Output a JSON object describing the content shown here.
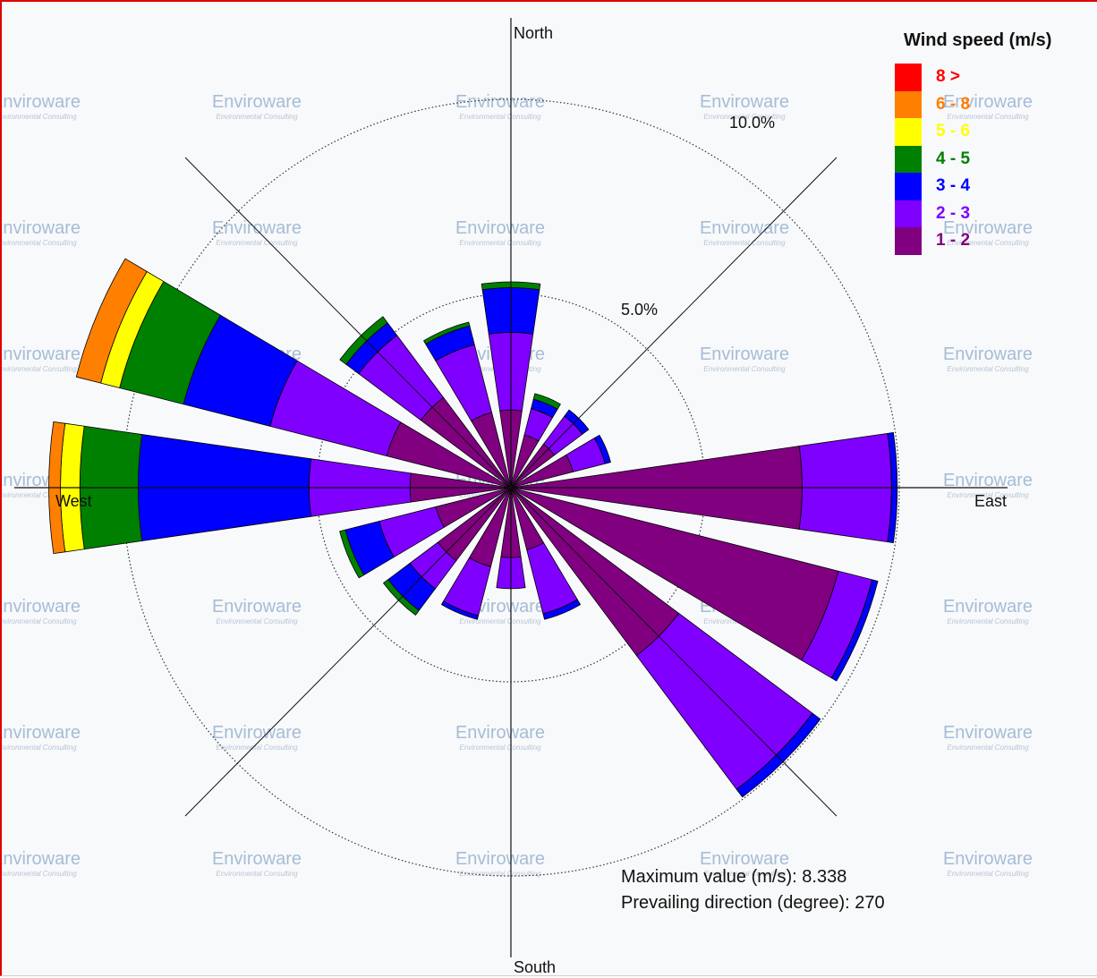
{
  "chart_data": {
    "type": "wind-rose",
    "directions_deg": [
      0,
      22.5,
      45,
      67.5,
      90,
      112.5,
      135,
      157.5,
      180,
      202.5,
      225,
      247.5,
      270,
      292.5,
      315,
      337.5
    ],
    "compass_labels": {
      "north": "North",
      "east": "East",
      "south": "South",
      "west": "West"
    },
    "ring_labels": [
      "5.0%",
      "10.0%"
    ],
    "ring_values_pct": [
      5.0,
      10.0
    ],
    "legend_title": "Wind speed (m/s)",
    "bins": [
      {
        "label": "1 - 2",
        "color": "#800080"
      },
      {
        "label": "2 - 3",
        "color": "#8000ff"
      },
      {
        "label": "3 - 4",
        "color": "#0000ff"
      },
      {
        "label": "4 - 5",
        "color": "#008000"
      },
      {
        "label": "5 - 6",
        "color": "#ffff00"
      },
      {
        "label": "6 - 8",
        "color": "#ff8000"
      },
      {
        "label": "8 >",
        "color": "#ff0000"
      }
    ],
    "legend_order": [
      "8 >",
      "6 - 8",
      "5 - 6",
      "4 - 5",
      "3 - 4",
      "2 - 3",
      "1 - 2"
    ],
    "legend_text_colors": [
      "#ff0000",
      "#ff8000",
      "#ffff00",
      "#008000",
      "#0000ff",
      "#8000ff",
      "#800080"
    ],
    "cumulative_pct": [
      [
        2.0,
        4.0,
        5.15,
        5.3
      ],
      [
        1.4,
        2.1,
        2.35,
        2.5
      ],
      [
        1.4,
        2.3,
        2.5
      ],
      [
        1.65,
        2.5,
        2.65
      ],
      [
        7.5,
        9.8,
        9.95
      ],
      [
        8.7,
        9.6,
        9.75
      ],
      [
        5.4,
        9.7,
        9.95
      ],
      [
        1.65,
        3.35,
        3.5
      ],
      [
        1.8,
        2.6
      ],
      [
        2.1,
        3.4,
        3.5
      ],
      [
        2.35,
        3.25,
        3.95,
        4.1
      ],
      [
        2.0,
        3.5,
        4.4,
        4.55
      ],
      [
        2.6,
        5.2,
        9.6,
        11.1,
        11.6,
        11.9
      ],
      [
        3.3,
        6.4,
        8.7,
        10.4,
        10.9,
        11.55
      ],
      [
        2.9,
        4.9,
        5.3,
        5.5
      ],
      [
        2.0,
        3.8,
        4.3,
        4.4
      ]
    ],
    "max_label": "Maximum value (m/s):",
    "max_value": "8.338",
    "prevailing_label": "Prevailing direction (degree):",
    "prevailing_value": "270",
    "grid": true
  },
  "watermark": {
    "brand": "Enviroware",
    "tagline": "Environmental Consulting"
  }
}
